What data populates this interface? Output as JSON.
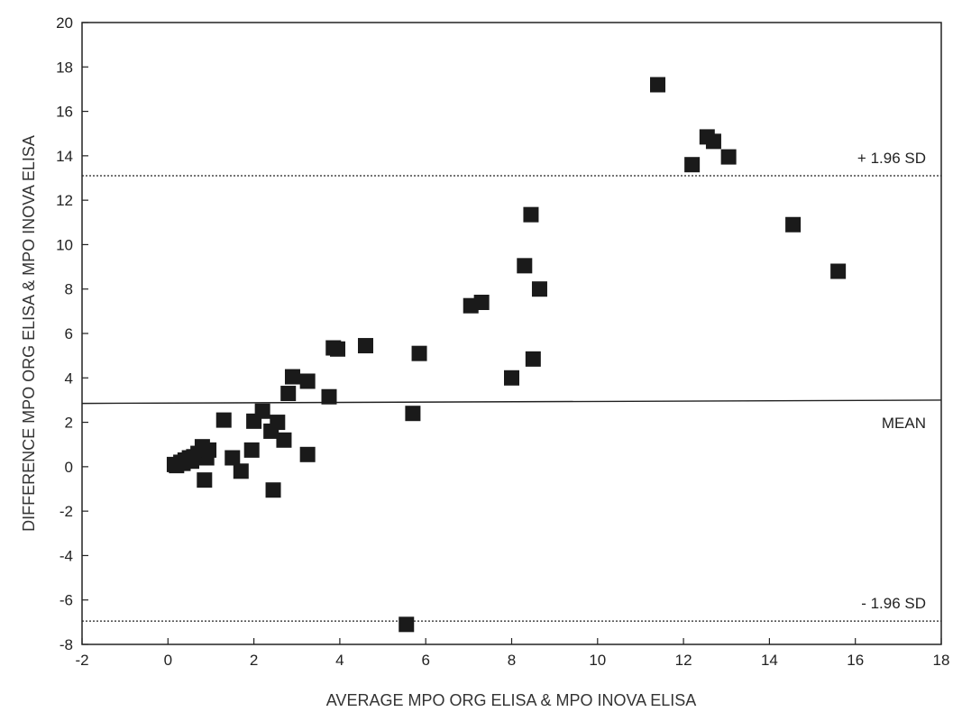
{
  "chart_data": {
    "type": "scatter",
    "title": "",
    "xlabel": "AVERAGE MPO ORG ELISA & MPO INOVA ELISA",
    "ylabel": "DIFFERENCE MPO ORG ELISA & MPO INOVA ELISA",
    "xlim": [
      -2,
      18
    ],
    "ylim": [
      -8,
      20
    ],
    "x_ticks": [
      -2,
      0,
      2,
      4,
      6,
      8,
      10,
      12,
      14,
      16,
      18
    ],
    "y_ticks": [
      -8,
      -6,
      -4,
      -2,
      0,
      2,
      4,
      6,
      8,
      10,
      12,
      14,
      16,
      18,
      20
    ],
    "grid": false,
    "marker": "square",
    "points": [
      {
        "x": 0.15,
        "y": 0.1
      },
      {
        "x": 0.2,
        "y": 0.05
      },
      {
        "x": 0.3,
        "y": 0.2
      },
      {
        "x": 0.35,
        "y": 0.15
      },
      {
        "x": 0.4,
        "y": 0.3
      },
      {
        "x": 0.5,
        "y": 0.4
      },
      {
        "x": 0.55,
        "y": 0.25
      },
      {
        "x": 0.6,
        "y": 0.45
      },
      {
        "x": 0.7,
        "y": 0.6
      },
      {
        "x": 0.8,
        "y": 0.9
      },
      {
        "x": 0.85,
        "y": 0.55
      },
      {
        "x": 0.9,
        "y": 0.4
      },
      {
        "x": 0.95,
        "y": 0.75
      },
      {
        "x": 0.85,
        "y": -0.6
      },
      {
        "x": 1.3,
        "y": 2.1
      },
      {
        "x": 1.5,
        "y": 0.4
      },
      {
        "x": 1.7,
        "y": -0.2
      },
      {
        "x": 1.95,
        "y": 0.75
      },
      {
        "x": 2.0,
        "y": 2.05
      },
      {
        "x": 2.2,
        "y": 2.5
      },
      {
        "x": 2.4,
        "y": 1.6
      },
      {
        "x": 2.45,
        "y": -1.05
      },
      {
        "x": 2.55,
        "y": 2.0
      },
      {
        "x": 2.7,
        "y": 1.2
      },
      {
        "x": 2.8,
        "y": 3.3
      },
      {
        "x": 2.9,
        "y": 4.05
      },
      {
        "x": 3.25,
        "y": 3.85
      },
      {
        "x": 3.25,
        "y": 0.55
      },
      {
        "x": 3.75,
        "y": 3.15
      },
      {
        "x": 3.85,
        "y": 5.35
      },
      {
        "x": 3.95,
        "y": 5.3
      },
      {
        "x": 4.6,
        "y": 5.45
      },
      {
        "x": 5.55,
        "y": -7.1
      },
      {
        "x": 5.7,
        "y": 2.4
      },
      {
        "x": 5.85,
        "y": 5.1
      },
      {
        "x": 7.05,
        "y": 7.25
      },
      {
        "x": 7.3,
        "y": 7.4
      },
      {
        "x": 8.0,
        "y": 4.0
      },
      {
        "x": 8.3,
        "y": 9.05
      },
      {
        "x": 8.45,
        "y": 11.35
      },
      {
        "x": 8.5,
        "y": 4.85
      },
      {
        "x": 8.65,
        "y": 8.0
      },
      {
        "x": 11.4,
        "y": 17.2
      },
      {
        "x": 12.2,
        "y": 13.6
      },
      {
        "x": 12.55,
        "y": 14.85
      },
      {
        "x": 12.7,
        "y": 14.65
      },
      {
        "x": 13.05,
        "y": 13.95
      },
      {
        "x": 14.55,
        "y": 10.9
      },
      {
        "x": 15.6,
        "y": 8.8
      }
    ],
    "reference_lines": [
      {
        "label": "+ 1.96 SD",
        "y": 13.1,
        "style": "dotted"
      },
      {
        "label": "MEAN",
        "y": 2.85,
        "y_end": 3.0,
        "style": "solid"
      },
      {
        "label": "- 1.96 SD",
        "y": -6.95,
        "style": "dotted"
      }
    ]
  }
}
